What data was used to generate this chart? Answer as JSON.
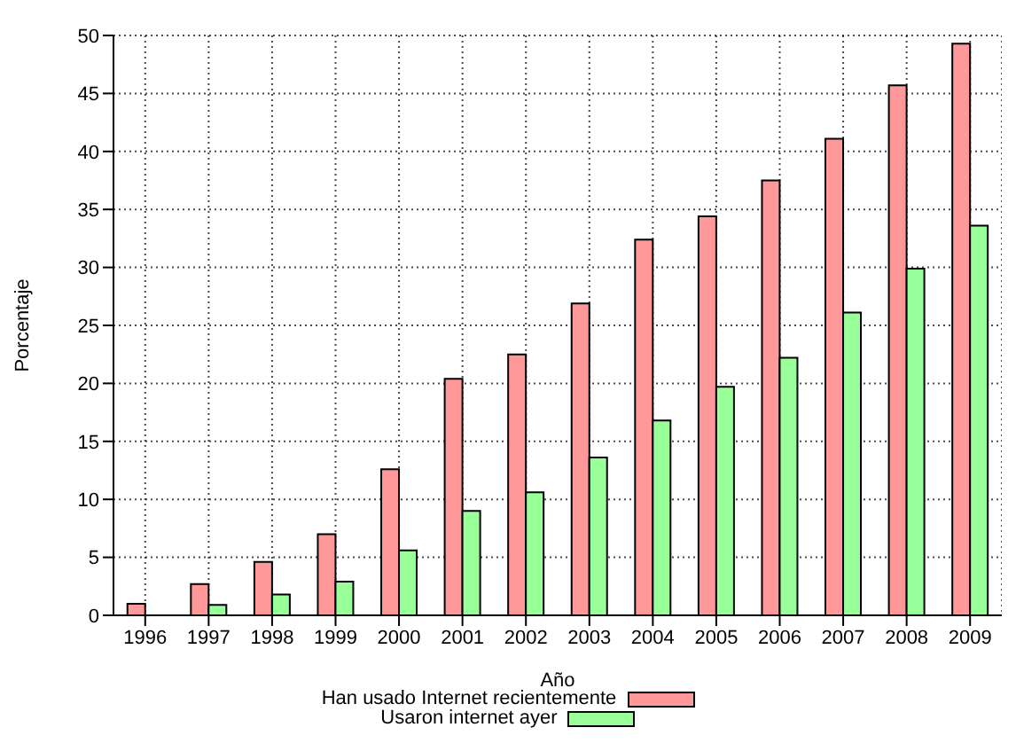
{
  "chart_data": {
    "type": "bar",
    "xlabel": "Año",
    "ylabel": "Porcentaje",
    "categories": [
      "1996",
      "1997",
      "1998",
      "1999",
      "2000",
      "2001",
      "2002",
      "2003",
      "2004",
      "2005",
      "2006",
      "2007",
      "2008",
      "2009"
    ],
    "series": [
      {
        "name": "Han usado Internet recientemente",
        "color": "#ff9999",
        "values": [
          1.0,
          2.7,
          4.6,
          7.0,
          12.6,
          20.4,
          22.5,
          26.9,
          32.4,
          34.4,
          37.5,
          41.1,
          45.7,
          49.3
        ]
      },
      {
        "name": "Usaron internet ayer",
        "color": "#99ff99",
        "values": [
          null,
          0.9,
          1.8,
          2.9,
          5.6,
          9.0,
          10.6,
          13.6,
          16.8,
          19.7,
          22.2,
          26.1,
          29.9,
          33.6
        ]
      }
    ],
    "ylim": [
      0,
      50
    ],
    "yticks": [
      0,
      5,
      10,
      15,
      20,
      25,
      30,
      35,
      40,
      45,
      50
    ],
    "grid": true,
    "legend": "bottom"
  }
}
